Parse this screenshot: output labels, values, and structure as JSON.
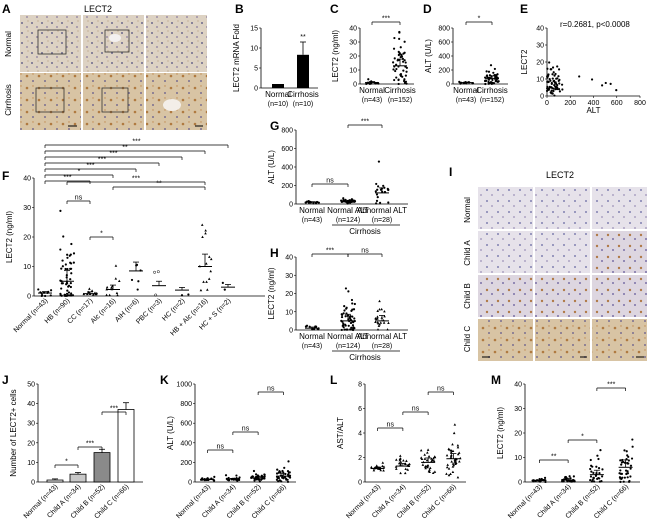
{
  "panel_letters": [
    "A",
    "B",
    "C",
    "D",
    "E",
    "F",
    "G",
    "H",
    "I",
    "J",
    "K",
    "L",
    "M"
  ],
  "panelA": {
    "title": "LECT2",
    "row_labels": [
      "Normal",
      "Cirrhosis"
    ]
  },
  "panelI": {
    "title": "LECT2",
    "row_labels": [
      "Normal",
      "Child A",
      "Child B",
      "Child C"
    ]
  },
  "stats": {
    "r_text": "r=0.2681, p<0.0008"
  },
  "chart_data": [
    {
      "panel": "B",
      "type": "bar",
      "categories": [
        "Normal",
        "Cirrhosis"
      ],
      "n": [
        "(n=10)",
        "(n=10)"
      ],
      "values": [
        1,
        8.3
      ],
      "ylabel": "LECT2 mRNA Fold",
      "yticks": [
        0,
        5,
        10,
        15
      ],
      "ylim": [
        0,
        15
      ],
      "annotations": [
        "**"
      ]
    },
    {
      "panel": "C",
      "type": "scatter",
      "categories": [
        "Normal",
        "Cirrhosis"
      ],
      "n": [
        "(n=43)",
        "(n=152)"
      ],
      "ylabel": "LECT2 (ng/ml)",
      "yticks": [
        0,
        10,
        20,
        30,
        40
      ],
      "ylim": [
        0,
        40
      ],
      "means": [
        1,
        13
      ],
      "annotations": [
        "***"
      ]
    },
    {
      "panel": "D",
      "type": "scatter",
      "categories": [
        "Normal",
        "Cirrhosis"
      ],
      "n": [
        "(n=43)",
        "(n=152)"
      ],
      "ylabel": "ALT (U/L)",
      "yticks": [
        0,
        200,
        400,
        600,
        800
      ],
      "ylim": [
        0,
        800
      ],
      "means": [
        20,
        80
      ],
      "annotations": [
        "*"
      ]
    },
    {
      "panel": "E",
      "type": "scatter",
      "xlabel": "ALT",
      "ylabel": "LECT2",
      "xticks": [
        0,
        200,
        400,
        600,
        800
      ],
      "yticks": [
        0,
        10,
        20,
        30,
        40
      ],
      "xlim": [
        0,
        800
      ],
      "ylim": [
        0,
        40
      ]
    },
    {
      "panel": "F",
      "type": "scatter",
      "ylabel": "LECT2 (ng/ml)",
      "yticks": [
        0,
        10,
        20,
        30,
        40
      ],
      "ylim": [
        0,
        40
      ],
      "categories": [
        "Normal (n=43)",
        "HB (n=90)",
        "CC (n=17)",
        "Alc (n=16)",
        "AIH (n=6)",
        "PBC (n=3)",
        "HC (n=2)",
        "HB + Alc (n=16)",
        "HC + S (n=2)"
      ],
      "means": [
        1,
        5,
        0.8,
        2.2,
        8.5,
        3.5,
        2,
        10,
        3
      ],
      "annotations": [
        "***",
        "**",
        "***",
        "***",
        "***",
        "*",
        "***",
        "ns",
        "*",
        "***",
        "**"
      ]
    },
    {
      "panel": "G",
      "type": "scatter",
      "ylabel": "ALT (U/L)",
      "yticks": [
        0,
        200,
        400,
        600,
        800
      ],
      "ylim": [
        0,
        800
      ],
      "categories": [
        "Normal",
        "Normal ALT",
        "Abnormal ALT"
      ],
      "n": [
        "(n=43)",
        "(n=124)",
        "(n=28)"
      ],
      "group_label": "Cirrhosis",
      "means": [
        20,
        30,
        120
      ],
      "annotations": [
        "***",
        "ns"
      ]
    },
    {
      "panel": "H",
      "type": "scatter",
      "ylabel": "LECT2 (ng/ml)",
      "yticks": [
        0,
        10,
        20,
        30,
        40
      ],
      "ylim": [
        0,
        40
      ],
      "categories": [
        "Normal",
        "Normal ALT",
        "Abnormal ALT"
      ],
      "n": [
        "(n=43)",
        "(n=124)",
        "(n=28)"
      ],
      "group_label": "Cirrhosis",
      "means": [
        1,
        5,
        5
      ],
      "annotations": [
        "***",
        "ns"
      ]
    },
    {
      "panel": "J",
      "type": "bar",
      "ylabel": "Number of LECT2+ cells",
      "yticks": [
        0,
        10,
        20,
        30,
        40,
        50
      ],
      "ylim": [
        0,
        50
      ],
      "categories": [
        "Normal (n=43)",
        "Child A (n=34)",
        "Child B (n=52)",
        "Child C (n=66)"
      ],
      "values": [
        1,
        4,
        15,
        37
      ],
      "annotations": [
        "*",
        "***",
        "***"
      ]
    },
    {
      "panel": "K",
      "type": "scatter",
      "ylabel": "ALT (U/L)",
      "yticks": [
        0,
        200,
        400,
        600,
        800,
        1000
      ],
      "ylim": [
        0,
        1000
      ],
      "categories": [
        "Normal (n=43)",
        "Child A (n=34)",
        "Child B (n=52)",
        "Child C (n=66)"
      ],
      "means": [
        25,
        30,
        40,
        60
      ],
      "annotations": [
        "ns",
        "ns",
        "ns"
      ]
    },
    {
      "panel": "L",
      "type": "scatter",
      "ylabel": "AST/ALT",
      "yticks": [
        0,
        2,
        4,
        6,
        8
      ],
      "ylim": [
        0,
        8
      ],
      "categories": [
        "Normal (n=43)",
        "Child A (n=34)",
        "Child B (n=52)",
        "Child C (n=66)"
      ],
      "means": [
        1.1,
        1.3,
        1.6,
        1.9
      ],
      "annotations": [
        "ns",
        "ns",
        "ns"
      ]
    },
    {
      "panel": "M",
      "type": "scatter",
      "ylabel": "LECT2 (ng/ml)",
      "yticks": [
        0,
        10,
        20,
        30,
        40
      ],
      "ylim": [
        0,
        40
      ],
      "categories": [
        "Normal (n=43)",
        "Child A (n=34)",
        "Child B (n=52)",
        "Child C (n=66)"
      ],
      "means": [
        0.6,
        0.8,
        3,
        6
      ],
      "annotations": [
        "**",
        "*",
        "***"
      ]
    }
  ]
}
